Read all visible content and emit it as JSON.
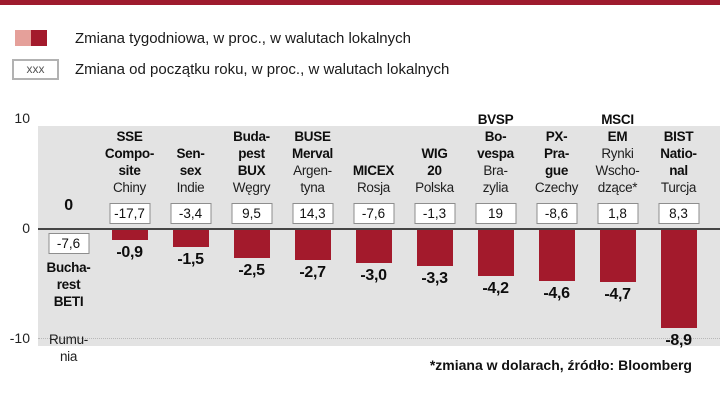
{
  "colors": {
    "top_rule": "#9e1b2e",
    "bar": "#a31a2c",
    "swatch_light": "#e5a09a",
    "swatch_dark": "#a31a2c",
    "plot_background": "#e3e3e3"
  },
  "legend": {
    "weekly_label": "Zmiana tygodniowa, w proc., w walutach lokalnych",
    "ytd_label": "Zmiana od początku roku, w proc., w walutach lokalnych",
    "ytd_box_text": "xxx"
  },
  "axis": {
    "ticks": [
      "10",
      "0",
      "-10"
    ]
  },
  "footnote": "*zmiana w dolarach, źródło: Bloomberg",
  "chart_data": {
    "type": "bar",
    "title": "",
    "xlabel": "",
    "ylabel": "proc.",
    "ylim": [
      -10,
      10
    ],
    "grid": false,
    "legend_position": "top-left",
    "categories": [
      "Bucharest BETI (Rumunia)",
      "SSE Composite (Chiny)",
      "Sensex (Indie)",
      "Budapest BUX (Węgry)",
      "BUSE Merval (Argentyna)",
      "MICEX (Rosja)",
      "WIG 20 (Polska)",
      "BVSP Bovespa (Brazylia)",
      "PX-Prague (Czechy)",
      "MSCI EM (Rynki Wschodzące*)",
      "BIST National (Turcja)"
    ],
    "series": [
      {
        "name": "Zmiana tygodniowa, w proc., w walutach lokalnych",
        "values": [
          0,
          -0.9,
          -1.5,
          -2.5,
          -2.7,
          -3.0,
          -3.3,
          -4.2,
          -4.6,
          -4.7,
          -8.9
        ]
      },
      {
        "name": "Zmiana od początku roku, w proc., w walutach lokalnych",
        "values": [
          -7.6,
          -17.7,
          -3.4,
          9.5,
          14.3,
          -7.6,
          -1.3,
          19,
          -8.6,
          1.8,
          8.3
        ]
      }
    ],
    "columns": [
      {
        "index": "Bucharest BETI",
        "index_lines": [
          "Bucha-",
          "rest",
          "BETI"
        ],
        "country": "Rumunia",
        "country_lines": [
          "Rumu-",
          "nia"
        ],
        "weekly": 0,
        "weekly_label": "0",
        "ytd": -7.6,
        "ytd_label": "-7,6",
        "name_position": "below"
      },
      {
        "index": "SSE Composite",
        "index_lines": [
          "SSE",
          "Compo-",
          "site"
        ],
        "country": "Chiny",
        "country_lines": [
          "Chiny"
        ],
        "weekly": -0.9,
        "weekly_label": "-0,9",
        "ytd": -17.7,
        "ytd_label": "-17,7",
        "name_position": "above"
      },
      {
        "index": "Sensex",
        "index_lines": [
          "Sen-",
          "sex"
        ],
        "country": "Indie",
        "country_lines": [
          "Indie"
        ],
        "weekly": -1.5,
        "weekly_label": "-1,5",
        "ytd": -3.4,
        "ytd_label": "-3,4",
        "name_position": "above"
      },
      {
        "index": "Budapest BUX",
        "index_lines": [
          "Buda-",
          "pest",
          "BUX"
        ],
        "country": "Węgry",
        "country_lines": [
          "Węgry"
        ],
        "weekly": -2.5,
        "weekly_label": "-2,5",
        "ytd": 9.5,
        "ytd_label": "9,5",
        "name_position": "above"
      },
      {
        "index": "BUSE Merval",
        "index_lines": [
          "BUSE",
          "Merval"
        ],
        "country": "Argentyna",
        "country_lines": [
          "Argen-",
          "tyna"
        ],
        "weekly": -2.7,
        "weekly_label": "-2,7",
        "ytd": 14.3,
        "ytd_label": "14,3",
        "name_position": "above"
      },
      {
        "index": "MICEX",
        "index_lines": [
          "MICEX"
        ],
        "country": "Rosja",
        "country_lines": [
          "Rosja"
        ],
        "weekly": -3.0,
        "weekly_label": "-3,0",
        "ytd": -7.6,
        "ytd_label": "-7,6",
        "name_position": "above"
      },
      {
        "index": "WIG 20",
        "index_lines": [
          "WIG",
          "20"
        ],
        "country": "Polska",
        "country_lines": [
          "Polska"
        ],
        "weekly": -3.3,
        "weekly_label": "-3,3",
        "ytd": -1.3,
        "ytd_label": "-1,3",
        "name_position": "above"
      },
      {
        "index": "BVSP Bovespa",
        "index_lines": [
          "BVSP",
          "Bo-",
          "vespa"
        ],
        "country": "Brazylia",
        "country_lines": [
          "Bra-",
          "zylia"
        ],
        "weekly": -4.2,
        "weekly_label": "-4,2",
        "ytd": 19,
        "ytd_label": "19",
        "name_position": "above"
      },
      {
        "index": "PX-Prague",
        "index_lines": [
          "PX-",
          "Pra-",
          "gue"
        ],
        "country": "Czechy",
        "country_lines": [
          "Czechy"
        ],
        "weekly": -4.6,
        "weekly_label": "-4,6",
        "ytd": -8.6,
        "ytd_label": "-8,6",
        "name_position": "above"
      },
      {
        "index": "MSCI EM",
        "index_lines": [
          "MSCI",
          "EM"
        ],
        "country": "Rynki Wschodzące*",
        "country_lines": [
          "Rynki",
          "Wscho-",
          "dzące*"
        ],
        "weekly": -4.7,
        "weekly_label": "-4,7",
        "ytd": 1.8,
        "ytd_label": "1,8",
        "name_position": "above"
      },
      {
        "index": "BIST National",
        "index_lines": [
          "BIST",
          "Natio-",
          "nal"
        ],
        "country": "Turcja",
        "country_lines": [
          "Turcja"
        ],
        "weekly": -8.9,
        "weekly_label": "-8,9",
        "ytd": 8.3,
        "ytd_label": "8,3",
        "name_position": "above"
      }
    ]
  }
}
